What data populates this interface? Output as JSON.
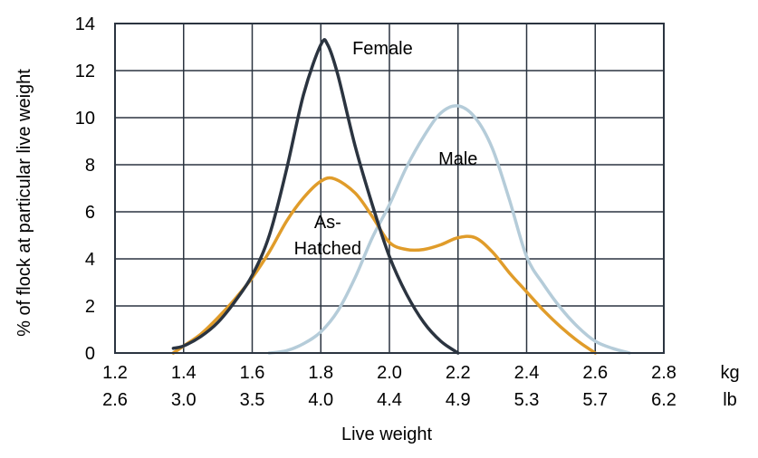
{
  "chart_data": {
    "type": "line",
    "title": "",
    "xlabel": "Live weight",
    "ylabel": "% of flock at particular live weight",
    "xlim": [
      1.2,
      2.8
    ],
    "ylim": [
      0,
      14
    ],
    "grid": true,
    "x_ticks_kg": [
      "1.2",
      "1.4",
      "1.6",
      "1.8",
      "2.0",
      "2.2",
      "2.4",
      "2.6",
      "2.8"
    ],
    "x_ticks_lb": [
      "2.6",
      "3.0",
      "3.5",
      "4.0",
      "4.4",
      "4.9",
      "5.3",
      "5.7",
      "6.2"
    ],
    "x_unit_kg": "kg",
    "x_unit_lb": "lb",
    "y_ticks": [
      "0",
      "2",
      "4",
      "6",
      "8",
      "10",
      "12",
      "14"
    ],
    "series": [
      {
        "name": "Female",
        "color": "#2b3440",
        "points": [
          [
            1.37,
            0.2
          ],
          [
            1.4,
            0.3
          ],
          [
            1.45,
            0.7
          ],
          [
            1.5,
            1.3
          ],
          [
            1.55,
            2.2
          ],
          [
            1.6,
            3.3
          ],
          [
            1.65,
            5.0
          ],
          [
            1.7,
            7.8
          ],
          [
            1.75,
            11.0
          ],
          [
            1.8,
            13.1
          ],
          [
            1.82,
            13.1
          ],
          [
            1.85,
            11.8
          ],
          [
            1.9,
            8.8
          ],
          [
            1.95,
            6.3
          ],
          [
            2.0,
            4.1
          ],
          [
            2.05,
            2.5
          ],
          [
            2.1,
            1.3
          ],
          [
            2.15,
            0.5
          ],
          [
            2.2,
            0.0
          ]
        ]
      },
      {
        "name": "Male",
        "color": "#b5ccd9",
        "points": [
          [
            1.65,
            0.0
          ],
          [
            1.7,
            0.1
          ],
          [
            1.75,
            0.4
          ],
          [
            1.8,
            0.9
          ],
          [
            1.85,
            1.8
          ],
          [
            1.9,
            3.2
          ],
          [
            1.95,
            4.9
          ],
          [
            2.0,
            6.3
          ],
          [
            2.05,
            7.9
          ],
          [
            2.1,
            9.2
          ],
          [
            2.15,
            10.2
          ],
          [
            2.2,
            10.5
          ],
          [
            2.25,
            10.0
          ],
          [
            2.3,
            8.7
          ],
          [
            2.35,
            6.5
          ],
          [
            2.4,
            4.1
          ],
          [
            2.45,
            2.9
          ],
          [
            2.5,
            1.9
          ],
          [
            2.55,
            1.1
          ],
          [
            2.6,
            0.5
          ],
          [
            2.65,
            0.2
          ],
          [
            2.7,
            0.0
          ]
        ]
      },
      {
        "name": "As-Hatched",
        "color": "#e09c2a",
        "points": [
          [
            1.37,
            0.0
          ],
          [
            1.4,
            0.3
          ],
          [
            1.45,
            0.8
          ],
          [
            1.5,
            1.5
          ],
          [
            1.55,
            2.3
          ],
          [
            1.6,
            3.2
          ],
          [
            1.65,
            4.3
          ],
          [
            1.7,
            5.6
          ],
          [
            1.75,
            6.6
          ],
          [
            1.8,
            7.3
          ],
          [
            1.84,
            7.4
          ],
          [
            1.9,
            6.8
          ],
          [
            1.95,
            5.8
          ],
          [
            2.0,
            4.7
          ],
          [
            2.05,
            4.4
          ],
          [
            2.1,
            4.4
          ],
          [
            2.15,
            4.6
          ],
          [
            2.2,
            4.9
          ],
          [
            2.25,
            4.9
          ],
          [
            2.3,
            4.3
          ],
          [
            2.35,
            3.4
          ],
          [
            2.4,
            2.6
          ],
          [
            2.45,
            1.8
          ],
          [
            2.5,
            1.1
          ],
          [
            2.55,
            0.5
          ],
          [
            2.6,
            0.0
          ]
        ]
      }
    ],
    "annotations": [
      {
        "text": "Female",
        "x": 1.98,
        "y": 12.7
      },
      {
        "text": "Male",
        "x": 2.2,
        "y": 8.0
      },
      {
        "text": "As-",
        "x": 1.82,
        "y": 5.3
      },
      {
        "text": "Hatched",
        "x": 1.82,
        "y": 4.2
      }
    ]
  }
}
